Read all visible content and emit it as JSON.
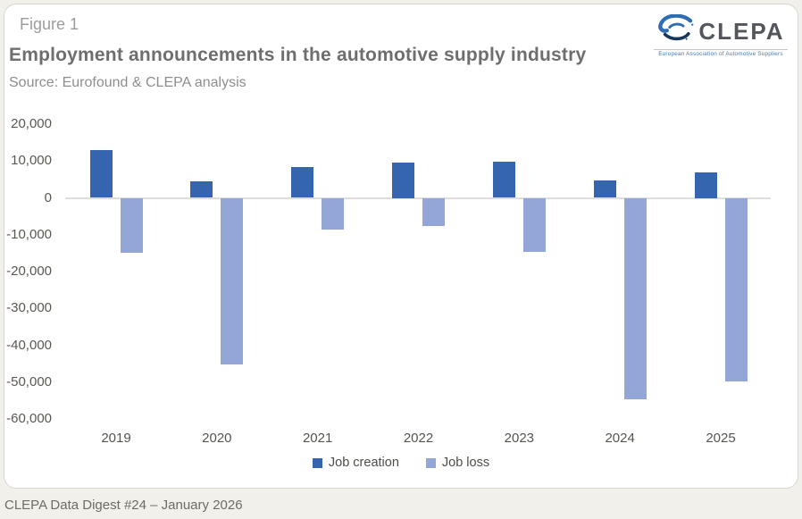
{
  "header": {
    "figure_label": "Figure 1",
    "title": "Employment announcements in the automotive supply industry",
    "source": "Source: Eurofound & CLEPA analysis"
  },
  "logo": {
    "name": "CLEPA",
    "tagline": "European Association of Automotive Suppliers",
    "mark_color_light": "#2f6db3",
    "mark_color_dark": "#16365c",
    "text_color": "#53565c"
  },
  "chart_data": {
    "type": "bar",
    "title": "Employment announcements in the automotive supply industry",
    "categories": [
      "2019",
      "2020",
      "2021",
      "2022",
      "2023",
      "2024",
      "2025"
    ],
    "series": [
      {
        "name": "Job creation",
        "color": "#3465ae",
        "values": [
          12900,
          4600,
          8400,
          9500,
          9800,
          4800,
          7000
        ]
      },
      {
        "name": "Job loss",
        "color": "#94a6d8",
        "values": [
          -14800,
          -45300,
          -8600,
          -7700,
          -14600,
          -54700,
          -49900
        ]
      }
    ],
    "ylim": [
      -60000,
      20000
    ],
    "ytick_values": [
      20000,
      10000,
      0,
      -10000,
      -20000,
      -30000,
      -40000,
      -50000,
      -60000
    ],
    "ytick_labels": [
      "20,000",
      "10,000",
      "0",
      "-10,000",
      "-20,000",
      "-30,000",
      "-40,000",
      "-50,000",
      "-60,000"
    ],
    "grid": false,
    "legend_position": "bottom",
    "axis_line_color": "#dedede"
  },
  "footer": {
    "text": "CLEPA Data Digest #24 – January 2026"
  }
}
